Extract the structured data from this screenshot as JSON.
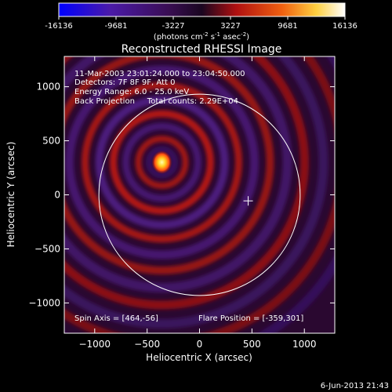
{
  "colorbar": {
    "ticks": [
      "-16136",
      "-9681",
      "-3227",
      "3227",
      "9681",
      "16136"
    ],
    "units_main": "(photons cm",
    "units_sup1": "-2",
    "units_mid": " s",
    "units_sup2": "-1",
    "units_end": " asec",
    "units_sup3": "-2",
    "units_close": ")"
  },
  "header": {
    "title": "Reconstructed RHESSI Image",
    "info_lines": [
      "11-Mar-2003 23:01:24.000 to 23:04:50.000",
      "Detectors: 7F 8F 9F, Att 0",
      "Energy Range: 6.0 - 25.0 keV",
      "Back Projection     Total counts: 2.29E+04"
    ],
    "spin_axis": "Spin Axis = [464,-56]",
    "flare_position": "Flare Position = [-359,301]",
    "footer_date": "6-Jun-2013 21:43"
  },
  "chart_data": {
    "type": "heatmap",
    "title": "Reconstructed RHESSI Image",
    "xlabel": "Heliocentric X (arcsec)",
    "ylabel": "Heliocentric Y (arcsec)",
    "xlim": [
      -1290,
      1290
    ],
    "ylim": [
      -1280,
      1280
    ],
    "xticks": [
      -1000,
      -500,
      0,
      500,
      1000
    ],
    "yticks": [
      -1000,
      -500,
      0,
      500,
      1000
    ],
    "xtick_labels": [
      "−1000",
      "−500",
      "0",
      "500",
      "1000"
    ],
    "ytick_labels": [
      "−1000",
      "−500",
      "0",
      "500",
      "1000"
    ],
    "colorbar_range": [
      -16136,
      16136
    ],
    "source_peak": {
      "x": -359,
      "y": 301
    },
    "spin_axis": {
      "x": 464,
      "y": -56
    },
    "solar_limb": {
      "center_x": 0,
      "center_y": 0,
      "radius_arcsec": 960
    },
    "colors": {
      "background": "#000000",
      "limb": "#ffffff",
      "text": "#ffffff"
    }
  }
}
